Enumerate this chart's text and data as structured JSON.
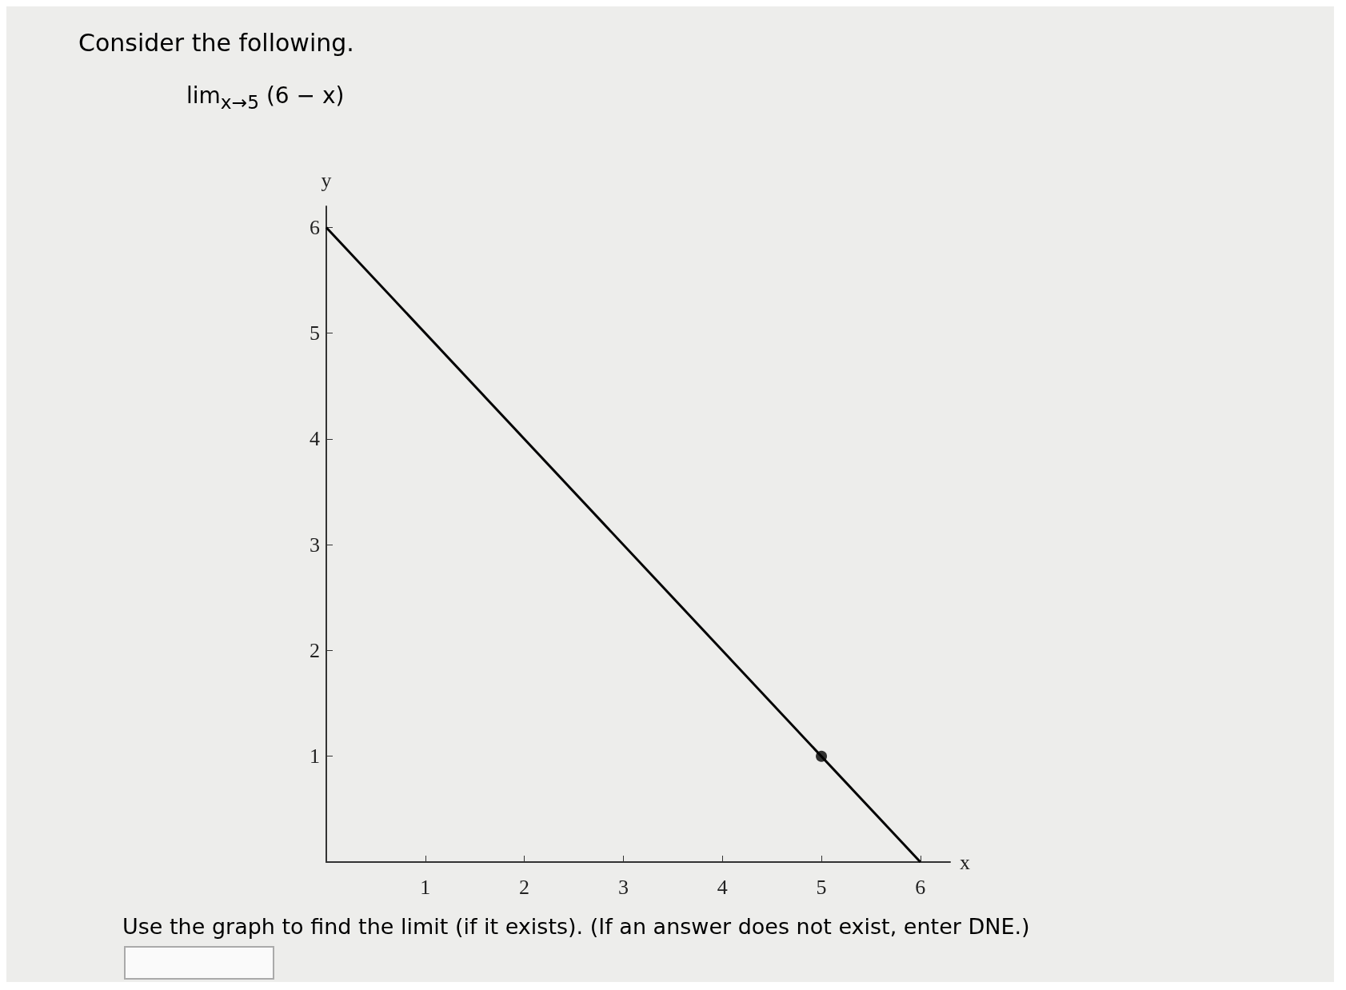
{
  "chart_data": {
    "type": "line",
    "title": "Consider the following.",
    "subtitle": "lim$_{x→5}$ (6 − x)",
    "xlabel": "x",
    "ylabel": "y",
    "series": [
      {
        "color": "#000000",
        "x": [
          0,
          6
        ],
        "values": [
          6,
          0
        ]
      },
      {
        "type": "scatter",
        "color": "#000000",
        "x": [
          5
        ],
        "values": [
          1
        ]
      }
    ],
    "xlim": [
      0,
      6.3
    ],
    "xticks": [
      1,
      2,
      3,
      4,
      5,
      6
    ],
    "ylim": [
      0,
      6.2
    ],
    "yticks": [
      1,
      2,
      3,
      4,
      5,
      6
    ],
    "grid": false,
    "annotations": [
      "Use the graph to find the limit (if it exists). (If an answer does not exist, enter DNE.)"
    ]
  }
}
